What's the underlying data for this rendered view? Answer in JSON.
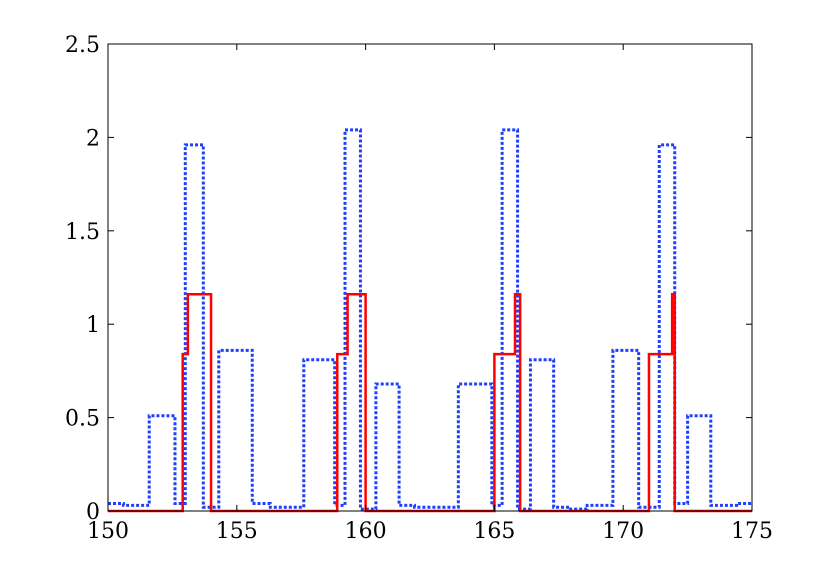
{
  "chart_data": {
    "type": "line",
    "step": true,
    "xlim": [
      150,
      175
    ],
    "ylim": [
      0,
      2.5
    ],
    "x_ticks": [
      150,
      155,
      160,
      165,
      170,
      175
    ],
    "x_tick_labels": [
      "150",
      "155",
      "160",
      "165",
      "170",
      "175"
    ],
    "y_ticks": [
      0,
      0.5,
      1,
      1.5,
      2,
      2.5
    ],
    "y_tick_labels": [
      "0",
      "0.5",
      "1",
      "1.5",
      "2",
      "2.5"
    ],
    "grid": false,
    "legend": null,
    "series": [
      {
        "style": "dotted",
        "color": "#1f3fff",
        "x": [
          150,
          150.6,
          151.6,
          152.6,
          153.0,
          153.7,
          154.3,
          155.6,
          156.3,
          157.6,
          158.8,
          159.2,
          159.8,
          160.4,
          161.3,
          161.9,
          163.6,
          164.9,
          165.3,
          165.9,
          166.4,
          167.3,
          167.9,
          168.6,
          169.6,
          170.6,
          171.4,
          172.0,
          172.5,
          173.4,
          174.4,
          175
        ],
        "y": [
          0.04,
          0.03,
          0.51,
          0.04,
          1.96,
          0.02,
          0.86,
          0.04,
          0.02,
          0.81,
          0.03,
          2.04,
          0.01,
          0.68,
          0.03,
          0.02,
          0.68,
          0.03,
          2.04,
          0.01,
          0.81,
          0.02,
          0.01,
          0.03,
          0.86,
          0.02,
          1.96,
          0.04,
          0.51,
          0.03,
          0.04,
          0.04
        ]
      },
      {
        "style": "solid",
        "color": "#ff0000",
        "x": [
          150,
          152.9,
          153.1,
          154.0,
          158.9,
          159.3,
          160.0,
          165.0,
          165.8,
          166.0,
          171.0,
          171.9,
          172.0,
          175
        ],
        "y": [
          0,
          0.84,
          1.16,
          0,
          0.84,
          1.16,
          0,
          0.84,
          1.16,
          0,
          0.84,
          1.16,
          0,
          0
        ]
      }
    ]
  }
}
